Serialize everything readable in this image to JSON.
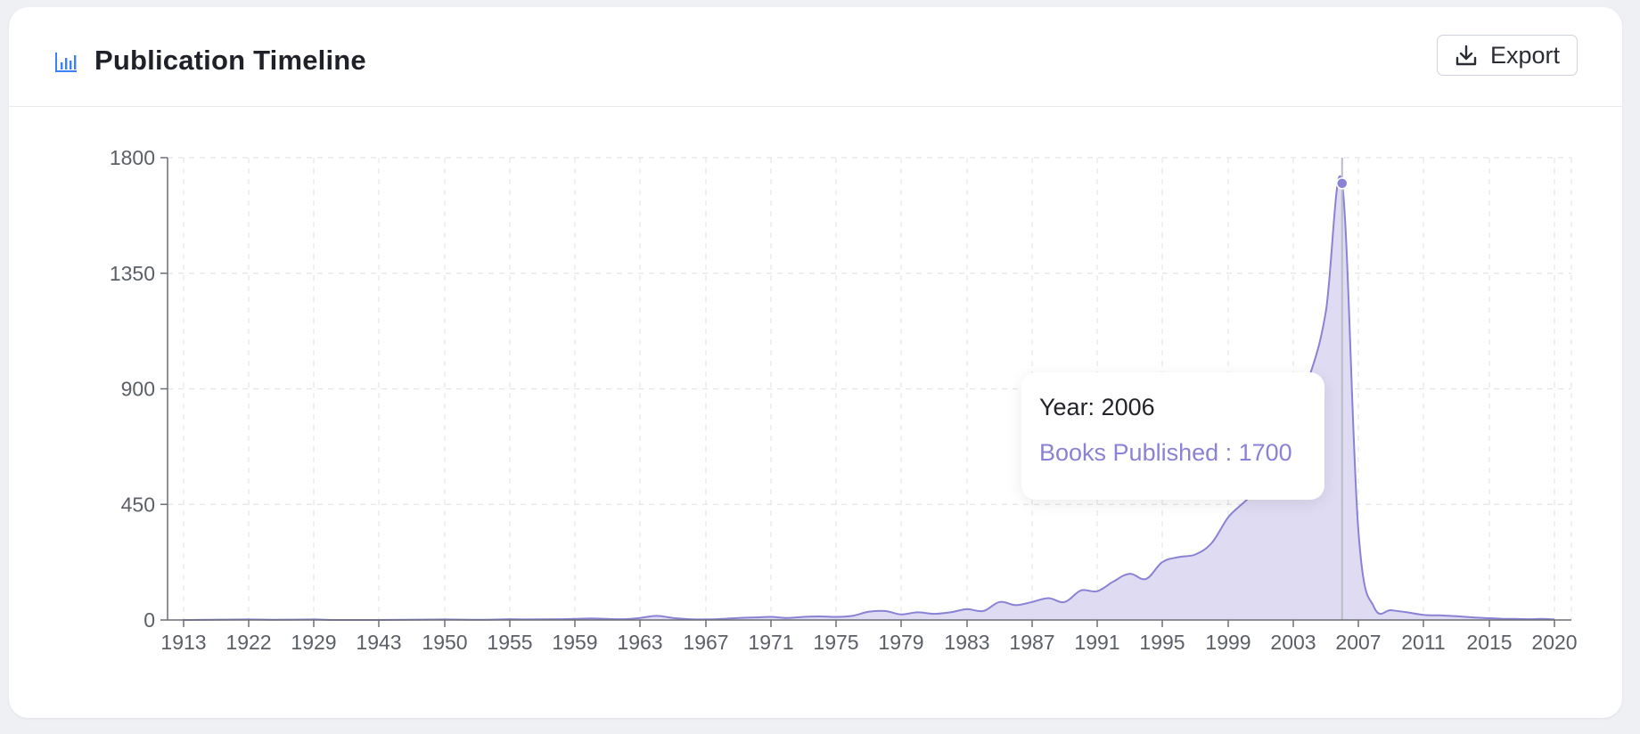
{
  "header": {
    "title": "Publication Timeline",
    "icon": "bar-chart-icon",
    "export_label": "Export",
    "export_icon": "download-icon"
  },
  "tooltip": {
    "year_label": "Year: 2006",
    "value_label": "Books Published : 1700"
  },
  "colors": {
    "accent": "#8a82d4",
    "area_fill": "#dcd9f1",
    "icon_blue": "#3b82f6"
  },
  "chart_data": {
    "type": "area",
    "title": "",
    "xlabel": "",
    "ylabel": "",
    "ylim": [
      0,
      1800
    ],
    "yticks": [
      0,
      450,
      900,
      1350,
      1800
    ],
    "grid": true,
    "xtick_labels": [
      "1913",
      "1922",
      "1929",
      "1943",
      "1950",
      "1955",
      "1959",
      "1963",
      "1967",
      "1971",
      "1975",
      "1979",
      "1983",
      "1987",
      "1991",
      "1995",
      "1999",
      "2003",
      "2007",
      "2011",
      "2015",
      "2020"
    ],
    "highlight": {
      "year": 2006,
      "value": 1700
    },
    "series": [
      {
        "name": "Books Published",
        "x": [
          "1913",
          "1914",
          "1922",
          "1925",
          "1929",
          "1934",
          "1943",
          "1946",
          "1950",
          "1953",
          "1955",
          "1956",
          "1958",
          "1959",
          "1960",
          "1961",
          "1962",
          "1963",
          "1964",
          "1965",
          "1966",
          "1967",
          "1968",
          "1969",
          "1970",
          "1971",
          "1972",
          "1973",
          "1974",
          "1975",
          "1976",
          "1977",
          "1978",
          "1979",
          "1980",
          "1981",
          "1982",
          "1983",
          "1984",
          "1985",
          "1986",
          "1987",
          "1988",
          "1989",
          "1990",
          "1991",
          "1992",
          "1993",
          "1994",
          "1995",
          "1996",
          "1997",
          "1998",
          "1999",
          "2000",
          "2001",
          "2002",
          "2003",
          "2004",
          "2005",
          "2006",
          "2007",
          "2008",
          "2009",
          "2010",
          "2011",
          "2012",
          "2013",
          "2014",
          "2015",
          "2016",
          "2017",
          "2018",
          "2019",
          "2020"
        ],
        "values": [
          0,
          0,
          2,
          1,
          2,
          0,
          0,
          1,
          2,
          1,
          3,
          2,
          3,
          4,
          6,
          4,
          3,
          8,
          16,
          8,
          3,
          2,
          4,
          8,
          10,
          12,
          8,
          12,
          14,
          12,
          16,
          32,
          35,
          22,
          30,
          24,
          30,
          42,
          35,
          70,
          58,
          70,
          85,
          70,
          115,
          112,
          150,
          180,
          160,
          225,
          245,
          255,
          300,
          400,
          460,
          520,
          650,
          800,
          950,
          1200,
          1700,
          350,
          45,
          38,
          30,
          20,
          18,
          15,
          10,
          7,
          5,
          4,
          3,
          4,
          2
        ]
      }
    ]
  }
}
